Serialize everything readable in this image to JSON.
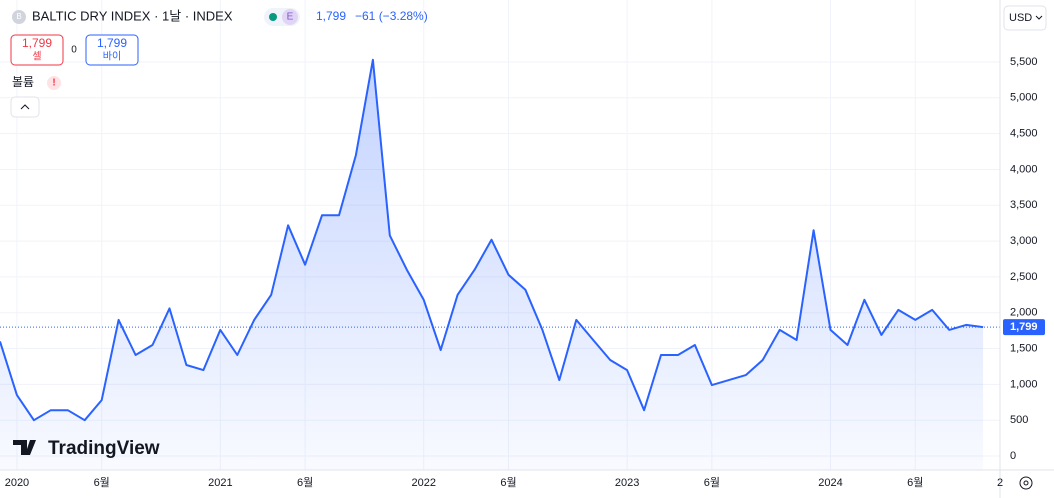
{
  "header": {
    "symbol_icon": "B",
    "title": "BALTIC DRY INDEX · 1날 · INDEX",
    "badge": "E",
    "price": "1,799",
    "change": "−61 (−3.28%)",
    "currency": "USD"
  },
  "buttons": {
    "sell_price": "1,799",
    "sell_label": "셀",
    "spread": "0",
    "buy_price": "1,799",
    "buy_label": "바이",
    "volume": "볼륨",
    "volume_alert": "!"
  },
  "logo": "TradingView",
  "chart_data": {
    "type": "area",
    "color": "#2962ff",
    "grid": true,
    "x": [
      "2019-12",
      "2020-01",
      "2020-02",
      "2020-03",
      "2020-04",
      "2020-05",
      "2020-06",
      "2020-07",
      "2020-08",
      "2020-09",
      "2020-10",
      "2020-11",
      "2020-12",
      "2021-01",
      "2021-02",
      "2021-03",
      "2021-04",
      "2021-05",
      "2021-06",
      "2021-07",
      "2021-08",
      "2021-09",
      "2021-10",
      "2021-11",
      "2021-12",
      "2022-01",
      "2022-02",
      "2022-03",
      "2022-04",
      "2022-05",
      "2022-06",
      "2022-07",
      "2022-08",
      "2022-09",
      "2022-10",
      "2022-11",
      "2022-12",
      "2023-01",
      "2023-02",
      "2023-03",
      "2023-04",
      "2023-05",
      "2023-06",
      "2023-07",
      "2023-08",
      "2023-09",
      "2023-10",
      "2023-11",
      "2023-12",
      "2024-01",
      "2024-02",
      "2024-03",
      "2024-04",
      "2024-05",
      "2024-06",
      "2024-07",
      "2024-08",
      "2024-09",
      "2024-10"
    ],
    "values": [
      1600,
      850,
      500,
      640,
      640,
      500,
      780,
      1900,
      1410,
      1550,
      2060,
      1270,
      1200,
      1760,
      1410,
      1900,
      2250,
      3220,
      2670,
      3360,
      3360,
      4200,
      5530,
      3080,
      2600,
      2180,
      1480,
      2250,
      2600,
      3020,
      2530,
      2320,
      1760,
      1060,
      1900,
      1620,
      1340,
      1200,
      640,
      1410,
      1410,
      1550,
      990,
      1060,
      1130,
      1340,
      1760,
      1620,
      3150,
      1760,
      1550,
      2180,
      1690,
      2040,
      1900,
      2040,
      1760,
      1830,
      1799
    ],
    "last_value": 1799,
    "last_value_label": "1,799",
    "xlim": [
      "2019-12",
      "2024-11"
    ],
    "xticks": [
      {
        "value": "2020-01",
        "label": "2020"
      },
      {
        "value": "2020-06",
        "label": "6월"
      },
      {
        "value": "2021-01",
        "label": "2021"
      },
      {
        "value": "2021-06",
        "label": "6월"
      },
      {
        "value": "2022-01",
        "label": "2022"
      },
      {
        "value": "2022-06",
        "label": "6월"
      },
      {
        "value": "2023-01",
        "label": "2023"
      },
      {
        "value": "2023-06",
        "label": "6월"
      },
      {
        "value": "2024-01",
        "label": "2024"
      },
      {
        "value": "2024-06",
        "label": "6월"
      },
      {
        "value": "2024-11",
        "label": "2"
      }
    ],
    "ylim": [
      -195,
      6365
    ],
    "yticks": [
      0,
      500,
      {
        "value": 1000,
        "label": "1,000"
      },
      {
        "value": 1500,
        "label": "1,500"
      },
      {
        "value": 2000,
        "label": "2,000"
      },
      {
        "value": 2500,
        "label": "2,500"
      },
      {
        "value": 3000,
        "label": "3,000"
      },
      {
        "value": 3500,
        "label": "3,500"
      },
      {
        "value": 4000,
        "label": "4,000"
      },
      {
        "value": 4500,
        "label": "4,500"
      },
      {
        "value": 5000,
        "label": "5,000"
      },
      {
        "value": 5500,
        "label": "5,500"
      }
    ]
  }
}
